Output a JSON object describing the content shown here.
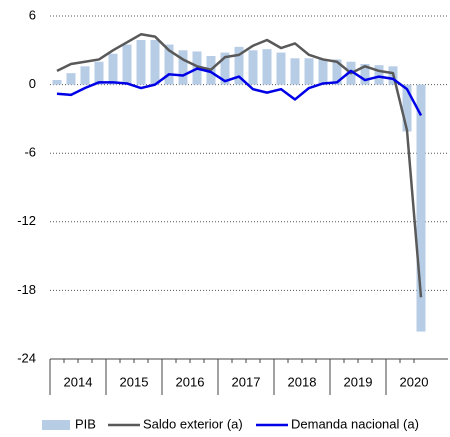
{
  "chart_data": {
    "type": "bar-line",
    "categories": [
      null,
      null,
      null,
      null,
      null,
      null,
      null,
      null,
      null,
      null,
      null,
      null,
      null,
      null,
      null,
      null,
      null,
      null,
      null,
      null,
      null,
      null,
      null,
      null,
      null,
      null,
      null
    ],
    "year_labels": [
      "2014",
      "2015",
      "2016",
      "2017",
      "2018",
      "2019",
      "2020"
    ],
    "series": [
      {
        "name": "PIB",
        "type": "bar",
        "color": "#b7cde6",
        "values": [
          0.4,
          1.0,
          1.6,
          2.0,
          2.7,
          3.5,
          3.9,
          3.9,
          3.5,
          3.0,
          2.9,
          2.5,
          2.8,
          3.3,
          3.0,
          3.1,
          2.8,
          2.3,
          2.3,
          2.2,
          2.2,
          2.0,
          1.8,
          1.7,
          1.6,
          -4.1,
          -21.6
        ]
      },
      {
        "name": "Saldo exterior (a)",
        "type": "line",
        "color": "#595959",
        "values": [
          1.2,
          1.8,
          2.0,
          2.2,
          3.0,
          3.7,
          4.4,
          4.2,
          3.0,
          2.2,
          1.6,
          1.3,
          2.4,
          2.6,
          3.4,
          3.9,
          3.2,
          3.6,
          2.6,
          2.2,
          2.0,
          1.0,
          1.6,
          1.2,
          1.0,
          -4.0,
          -18.6
        ]
      },
      {
        "name": "Demanda nacional (a)",
        "type": "line",
        "color": "#0000e6",
        "values": [
          -0.8,
          -0.9,
          -0.3,
          0.2,
          0.2,
          0.1,
          -0.3,
          0.0,
          0.9,
          0.8,
          1.4,
          1.1,
          0.3,
          0.7,
          -0.4,
          -0.7,
          -0.4,
          -1.3,
          -0.3,
          0.1,
          0.2,
          1.2,
          0.4,
          0.7,
          0.5,
          -0.4,
          -2.7
        ]
      }
    ],
    "ylim": [
      -24,
      6
    ],
    "yticks": [
      6,
      0,
      -6,
      -12,
      -18,
      -24
    ],
    "grid": true
  }
}
